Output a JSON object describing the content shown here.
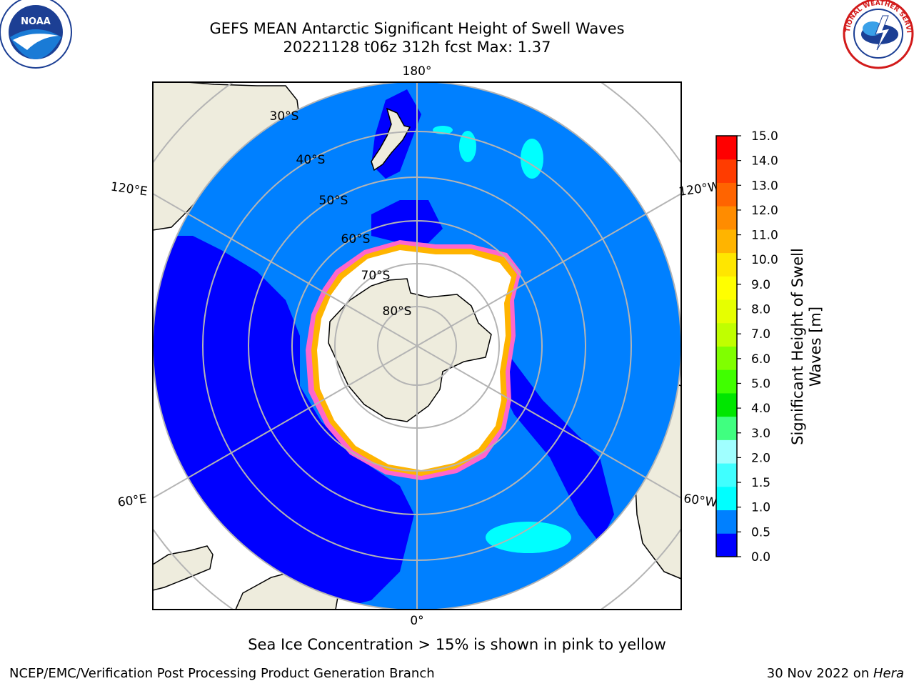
{
  "title": {
    "line1": "GEFS MEAN Antarctic Significant Height of Swell Waves",
    "line2": "20221128 t06z 312h fcst   Max: 1.37"
  },
  "map": {
    "projection": "south polar stereographic",
    "lon_labels": [
      "180°",
      "120°E",
      "120°W",
      "60°E",
      "60°W",
      "0°"
    ],
    "lat_labels": [
      "30°S",
      "40°S",
      "50°S",
      "60°S",
      "70°S",
      "80°S"
    ]
  },
  "colorbar": {
    "label_line1": "Significant Height of Swell",
    "label_line2": "Waves [m]",
    "ticks": [
      "15.0",
      "14.0",
      "13.0",
      "12.0",
      "11.0",
      "10.0",
      "9.0",
      "8.0",
      "7.0",
      "6.0",
      "5.0",
      "4.0",
      "3.0",
      "2.0",
      "1.5",
      "1.0",
      "0.5",
      "0.0"
    ],
    "colors": [
      "#0000ff",
      "#0080ff",
      "#00ffff",
      "#40ffff",
      "#a0ffff",
      "#40ff80",
      "#00e600",
      "#40ff00",
      "#80ff00",
      "#c0ff00",
      "#e6ff00",
      "#ffff00",
      "#ffe600",
      "#ffb400",
      "#ff8c00",
      "#ff6400",
      "#ff3c00",
      "#ff0000"
    ]
  },
  "caption": "Sea Ice Concentration > 15% is shown in pink to yellow",
  "footer": {
    "left": "NCEP/EMC/Verification Post Processing Product Generation Branch",
    "right_date": "30 Nov 2022 on ",
    "right_machine": "Hera"
  },
  "logos": {
    "noaa": "NOAA",
    "nws": "NATIONAL WEATHER SERVICE"
  },
  "colors": {
    "land": "#eeecdd",
    "ocean": "#0080ff",
    "low_swell": "#0000ff",
    "ice": "#ffffff",
    "grid": "#b4b4b4"
  }
}
